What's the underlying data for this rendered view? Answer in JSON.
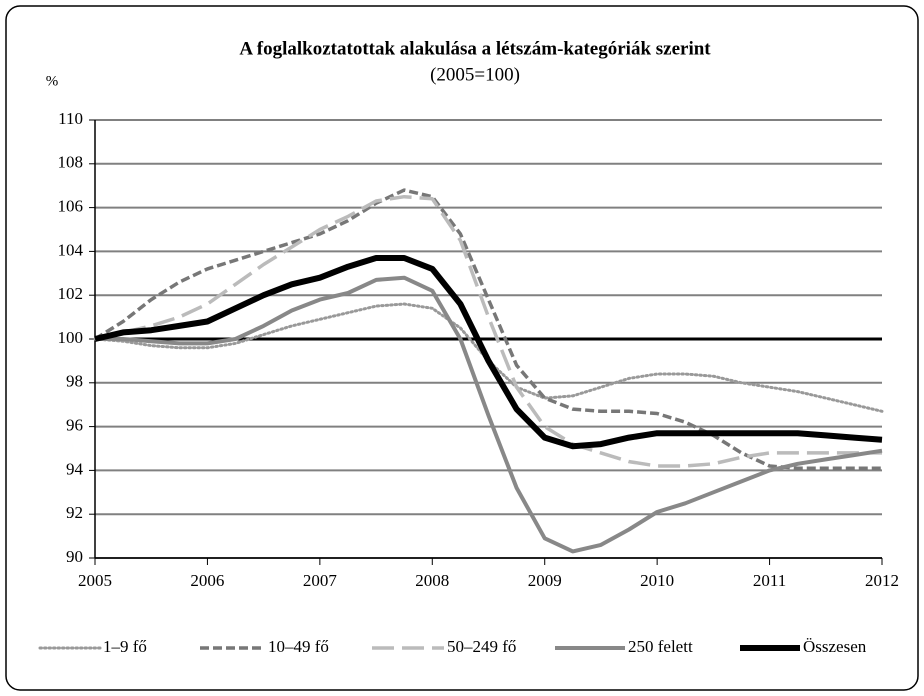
{
  "chart_data": {
    "type": "line",
    "title": "A foglalkoztatottak alakulása a létszám-kategóriák szerint",
    "subtitle": "(2005=100)",
    "y_label": "%",
    "x": [
      2005,
      2005.25,
      2005.5,
      2005.75,
      2006,
      2006.25,
      2006.5,
      2006.75,
      2007,
      2007.25,
      2007.5,
      2007.75,
      2008,
      2008.25,
      2008.5,
      2008.75,
      2009,
      2009.25,
      2009.5,
      2009.75,
      2010,
      2010.25,
      2010.5,
      2010.75,
      2011,
      2011.25,
      2011.5,
      2011.75,
      2012
    ],
    "xlim": [
      2005,
      2012
    ],
    "xticks": [
      2005,
      2006,
      2007,
      2008,
      2009,
      2010,
      2011,
      2012
    ],
    "ylim": [
      90,
      110
    ],
    "yticks": [
      90,
      92,
      94,
      96,
      98,
      100,
      102,
      104,
      106,
      108,
      110
    ],
    "grid": true,
    "reference_line": 100,
    "legend": "bottom",
    "series": [
      {
        "name": "1–9 fő",
        "color": "#999999",
        "style": "dotted",
        "values": [
          100,
          99.9,
          99.7,
          99.6,
          99.6,
          99.8,
          100.2,
          100.6,
          100.9,
          101.2,
          101.5,
          101.6,
          101.4,
          100.5,
          99.0,
          97.8,
          97.3,
          97.4,
          97.8,
          98.2,
          98.4,
          98.4,
          98.3,
          98.0,
          97.8,
          97.6,
          97.3,
          97.0,
          96.7
        ]
      },
      {
        "name": "10–49 fő",
        "color": "#777777",
        "style": "dashed",
        "values": [
          100,
          100.8,
          101.8,
          102.6,
          103.2,
          103.6,
          104.0,
          104.4,
          104.8,
          105.4,
          106.2,
          106.8,
          106.5,
          104.8,
          101.8,
          98.8,
          97.3,
          96.8,
          96.7,
          96.7,
          96.6,
          96.2,
          95.6,
          94.8,
          94.2,
          94.1,
          94.1,
          94.1,
          94.1
        ]
      },
      {
        "name": "50–249 fő",
        "color": "#bbbbbb",
        "style": "long-dashed",
        "values": [
          100,
          100.3,
          100.6,
          101.0,
          101.6,
          102.5,
          103.4,
          104.2,
          105.0,
          105.6,
          106.3,
          106.5,
          106.4,
          104.5,
          101.0,
          97.8,
          96.0,
          95.2,
          94.8,
          94.4,
          94.2,
          94.2,
          94.3,
          94.6,
          94.8,
          94.8,
          94.8,
          94.8,
          94.8
        ]
      },
      {
        "name": "250 felett",
        "color": "#888888",
        "style": "solid",
        "values": [
          100,
          100,
          99.9,
          99.8,
          99.8,
          100.0,
          100.6,
          101.3,
          101.8,
          102.1,
          102.7,
          102.8,
          102.2,
          100.0,
          96.5,
          93.2,
          90.9,
          90.3,
          90.6,
          91.3,
          92.1,
          92.5,
          93.0,
          93.5,
          94.0,
          94.3,
          94.5,
          94.7,
          94.9
        ]
      },
      {
        "name": "Összesen",
        "color": "#000000",
        "style": "thick",
        "values": [
          100,
          100.3,
          100.4,
          100.6,
          100.8,
          101.4,
          102.0,
          102.5,
          102.8,
          103.3,
          103.7,
          103.7,
          103.2,
          101.6,
          99.0,
          96.8,
          95.5,
          95.1,
          95.2,
          95.5,
          95.7,
          95.7,
          95.7,
          95.7,
          95.7,
          95.7,
          95.6,
          95.5,
          95.4
        ]
      }
    ]
  }
}
